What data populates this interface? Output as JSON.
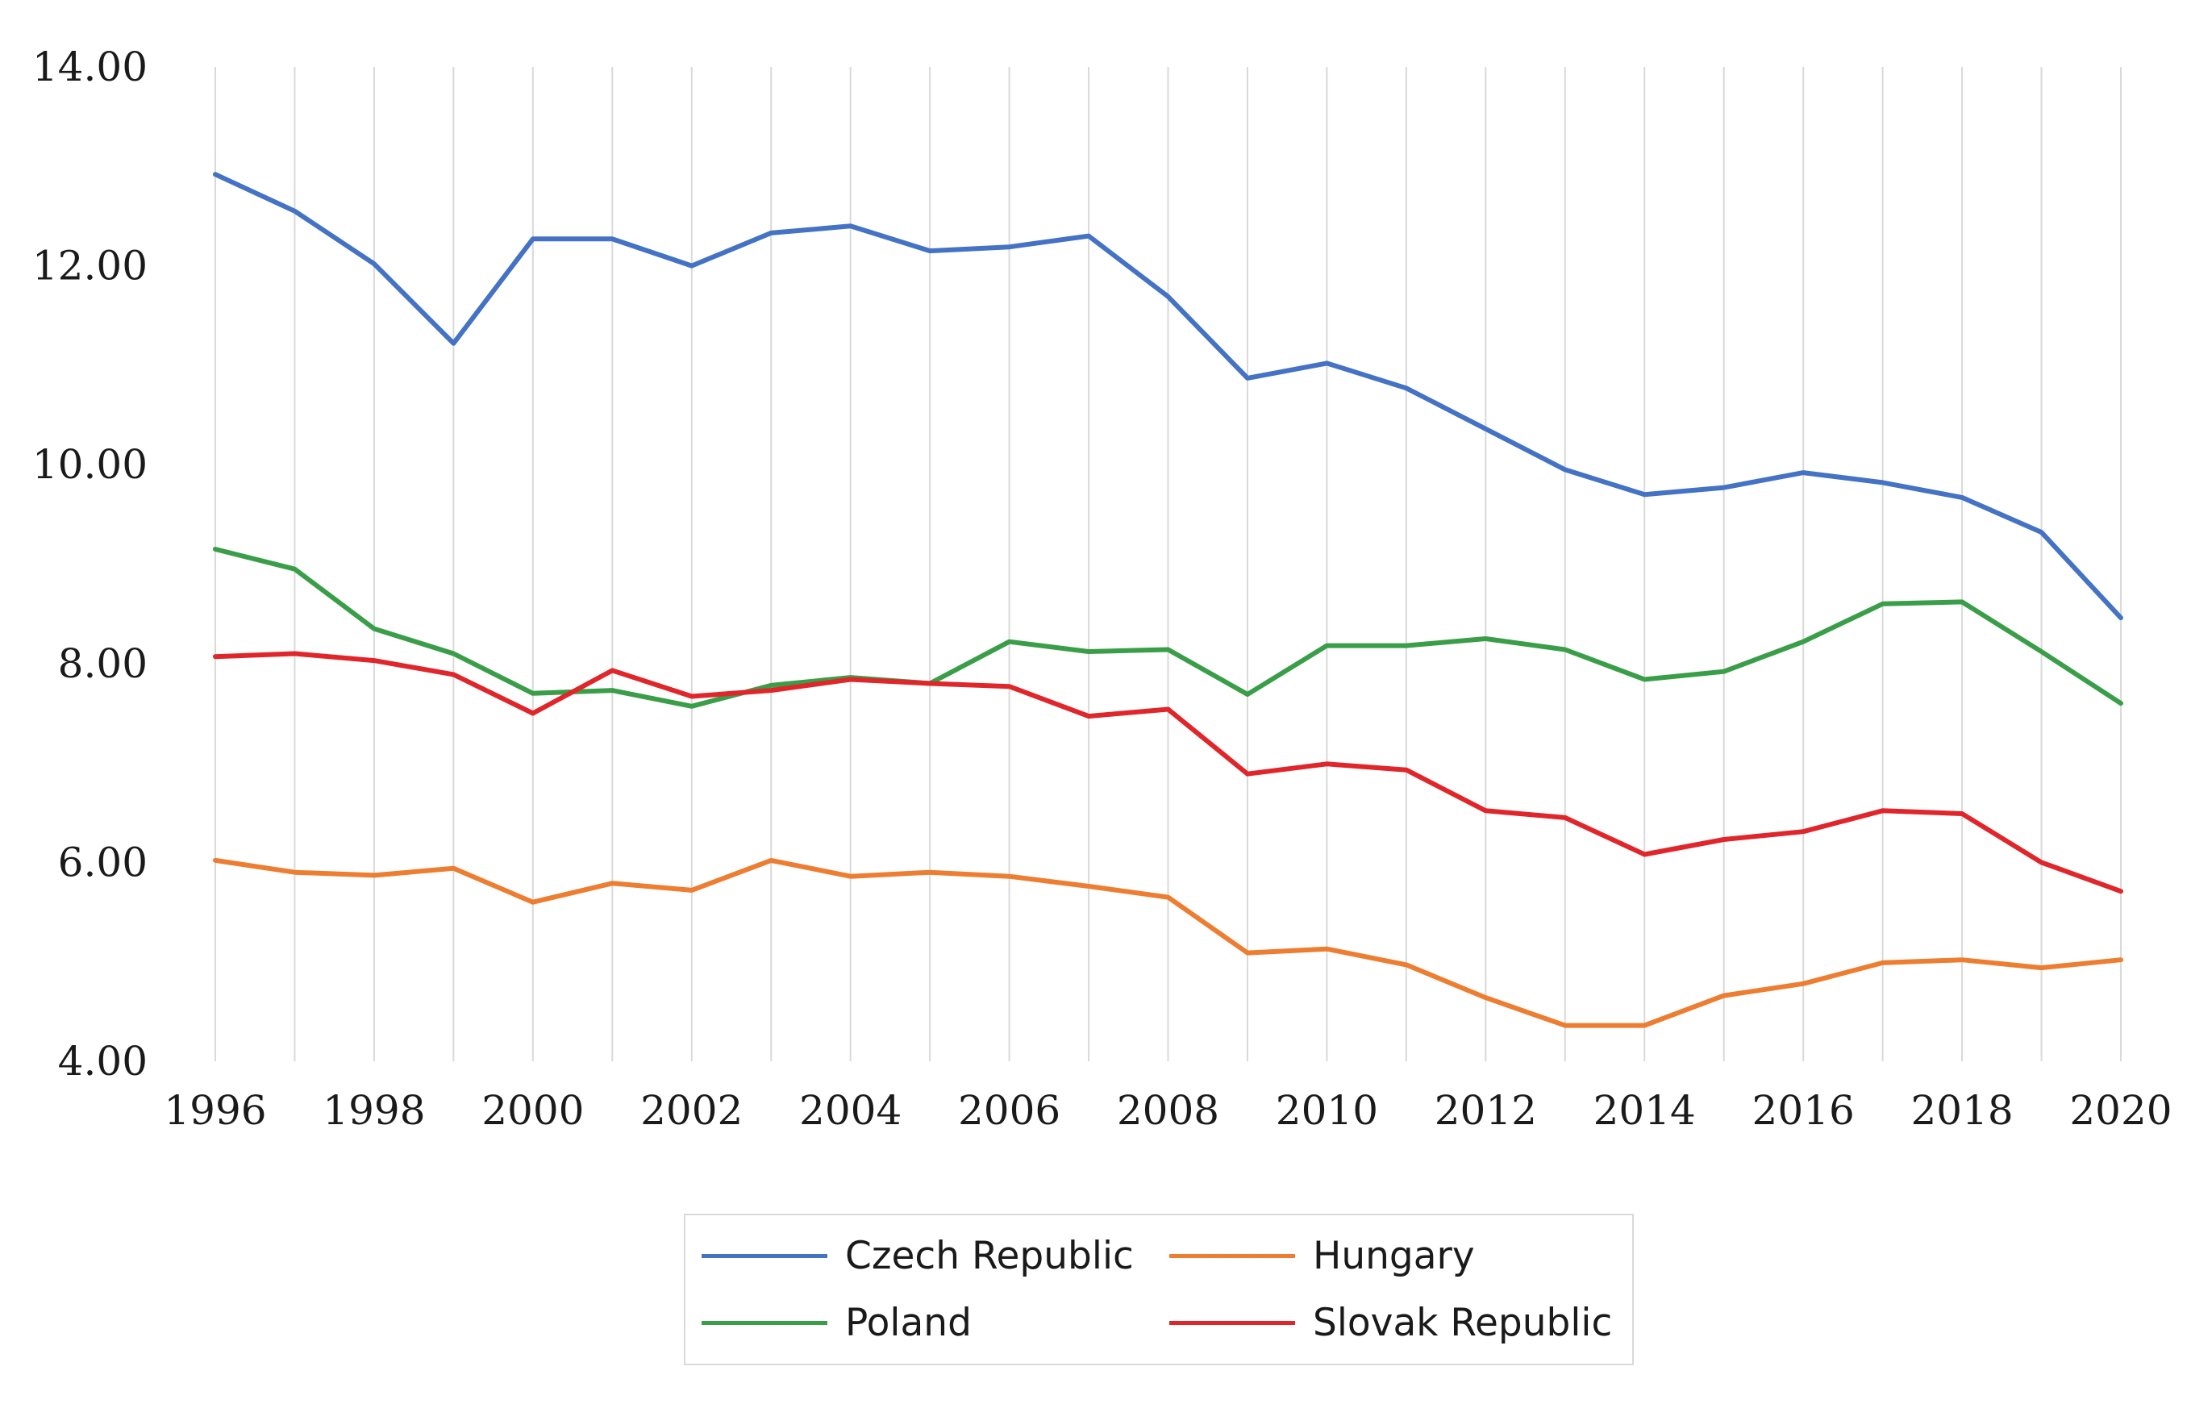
{
  "chart_data": {
    "type": "line",
    "title": "",
    "xlabel": "",
    "ylabel": "",
    "ylim": [
      4,
      14
    ],
    "yticks": [
      "4.00",
      "6.00",
      "8.00",
      "10.00",
      "12.00",
      "14.00"
    ],
    "xticks": [
      "1996",
      "1998",
      "2000",
      "2002",
      "2004",
      "2006",
      "2008",
      "2010",
      "2012",
      "2014",
      "2016",
      "2018",
      "2020"
    ],
    "x": [
      1996,
      1997,
      1998,
      1999,
      2000,
      2001,
      2002,
      2003,
      2004,
      2005,
      2006,
      2007,
      2008,
      2009,
      2010,
      2011,
      2012,
      2013,
      2014,
      2015,
      2016,
      2017,
      2018,
      2019,
      2020
    ],
    "grid": "vertical",
    "legend_position": "bottom-center",
    "series": [
      {
        "name": "Czech Republic",
        "color": "#4472c4",
        "values": [
          12.92,
          12.55,
          12.02,
          11.22,
          12.27,
          12.27,
          12.0,
          12.33,
          12.4,
          12.15,
          12.19,
          12.3,
          11.69,
          10.87,
          11.02,
          10.77,
          10.36,
          9.95,
          9.7,
          9.77,
          9.92,
          9.82,
          9.67,
          9.32,
          8.46
        ]
      },
      {
        "name": "Hungary",
        "color": "#ed7d31",
        "values": [
          6.02,
          5.9,
          5.87,
          5.94,
          5.6,
          5.79,
          5.72,
          6.02,
          5.86,
          5.9,
          5.86,
          5.76,
          5.65,
          5.09,
          5.13,
          4.97,
          4.64,
          4.36,
          4.36,
          4.66,
          4.78,
          4.99,
          5.02,
          4.94,
          5.02
        ]
      },
      {
        "name": "Poland",
        "color": "#3a9e49",
        "values": [
          9.15,
          8.95,
          8.35,
          8.1,
          7.7,
          7.73,
          7.57,
          7.78,
          7.86,
          7.8,
          8.22,
          8.12,
          8.14,
          7.69,
          8.18,
          8.18,
          8.25,
          8.14,
          7.84,
          7.92,
          8.22,
          8.6,
          8.62,
          8.12,
          7.6
        ]
      },
      {
        "name": "Slovak Republic",
        "color": "#e0262b",
        "values": [
          8.07,
          8.1,
          8.03,
          7.89,
          7.5,
          7.93,
          7.67,
          7.73,
          7.84,
          7.8,
          7.77,
          7.47,
          7.54,
          6.89,
          6.99,
          6.93,
          6.52,
          6.45,
          6.08,
          6.23,
          6.31,
          6.52,
          6.49,
          6.0,
          5.71
        ]
      }
    ]
  }
}
